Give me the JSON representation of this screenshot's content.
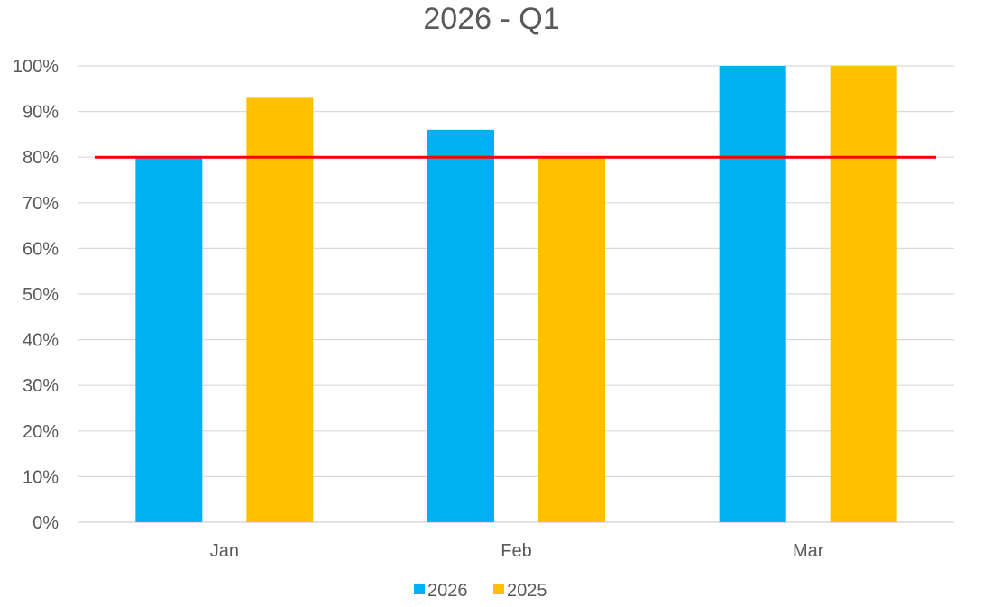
{
  "chart_data": {
    "type": "bar",
    "title": "2026 - Q1",
    "xlabel": "",
    "ylabel": "",
    "categories": [
      "Jan",
      "Feb",
      "Mar"
    ],
    "series": [
      {
        "name": "2026",
        "values": [
          80,
          86,
          100
        ],
        "color": "#00B0F0"
      },
      {
        "name": "2025",
        "values": [
          93,
          80,
          100
        ],
        "color": "#FFC000"
      }
    ],
    "target_line": {
      "value": 80,
      "color": "#FF0000"
    },
    "ylim": [
      0,
      100
    ],
    "y_ticks": [
      "0%",
      "10%",
      "20%",
      "30%",
      "40%",
      "50%",
      "60%",
      "70%",
      "80%",
      "90%",
      "100%"
    ],
    "grid": true,
    "legend_position": "bottom"
  }
}
